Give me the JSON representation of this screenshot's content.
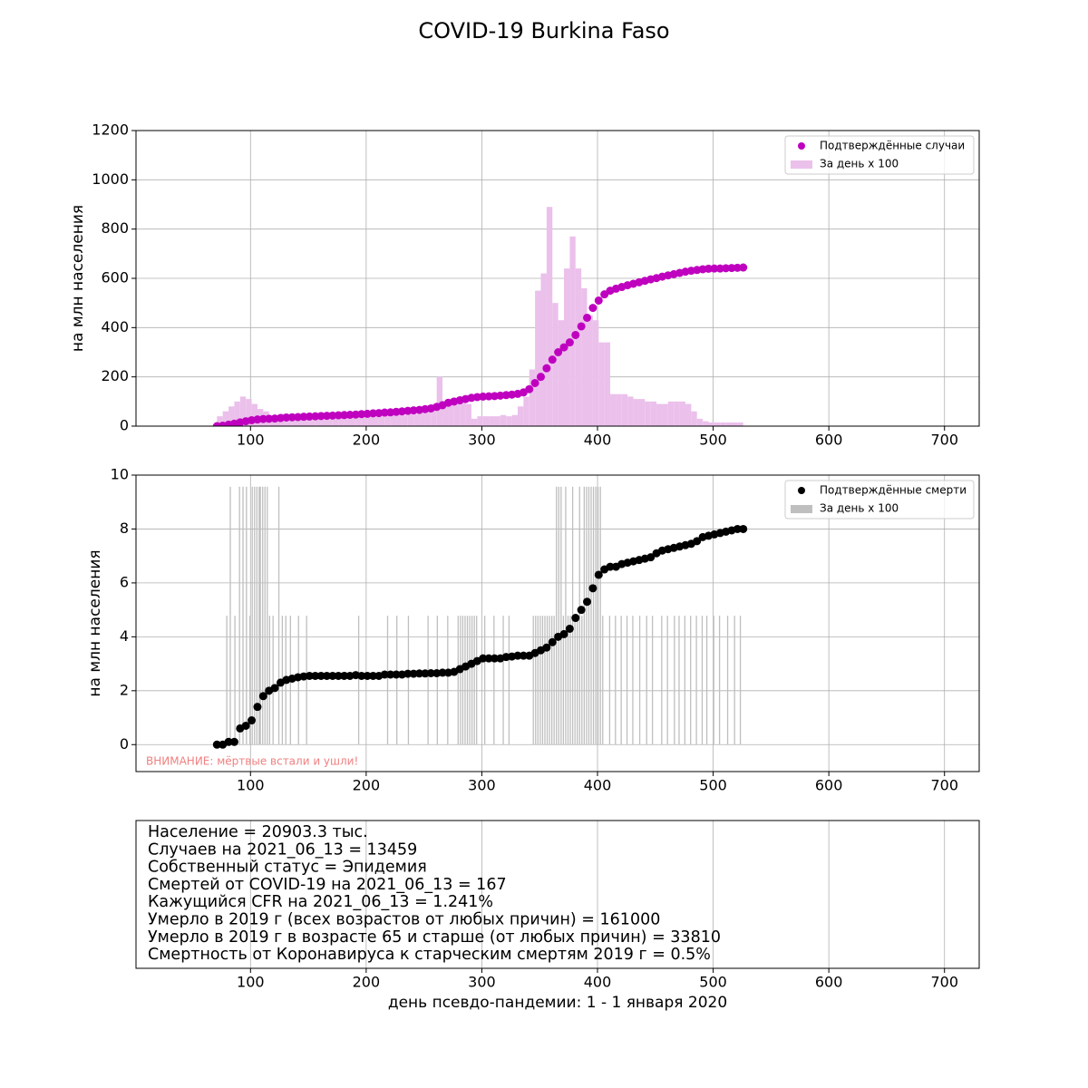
{
  "title": "COVID-19 Burkina Faso",
  "chart_data": [
    {
      "type": "combo",
      "ylabel": "на млн населения",
      "xlim": [
        1,
        730
      ],
      "xticks": [
        100,
        200,
        300,
        400,
        500,
        600,
        700
      ],
      "ylim": [
        0,
        1200
      ],
      "yticks": [
        0,
        200,
        400,
        600,
        800,
        1000,
        1200
      ],
      "grid": true,
      "legend": "upper right",
      "series": [
        {
          "name": "Подтверждённые случаи",
          "kind": "scatter",
          "color": "#bf00bf",
          "x": [
            71,
            76,
            81,
            86,
            91,
            96,
            101,
            106,
            111,
            116,
            121,
            126,
            131,
            136,
            141,
            146,
            151,
            156,
            161,
            166,
            171,
            176,
            181,
            186,
            191,
            196,
            201,
            206,
            211,
            216,
            221,
            226,
            231,
            236,
            241,
            246,
            251,
            256,
            261,
            266,
            271,
            276,
            281,
            286,
            291,
            296,
            301,
            306,
            311,
            316,
            321,
            326,
            331,
            336,
            341,
            346,
            351,
            356,
            361,
            366,
            371,
            376,
            381,
            386,
            391,
            396,
            401,
            406,
            411,
            416,
            421,
            426,
            431,
            436,
            441,
            446,
            451,
            456,
            461,
            466,
            471,
            476,
            481,
            486,
            491,
            496,
            501,
            506,
            511,
            516,
            521,
            526
          ],
          "values": [
            0,
            2,
            6,
            10,
            15,
            20,
            24,
            27,
            29,
            30,
            31,
            33,
            35,
            36,
            37,
            38,
            39,
            40,
            41,
            42,
            43,
            44,
            45,
            46,
            47,
            49,
            50,
            52,
            53,
            55,
            56,
            58,
            60,
            62,
            64,
            66,
            69,
            72,
            78,
            85,
            95,
            100,
            105,
            110,
            115,
            118,
            120,
            121,
            122,
            124,
            126,
            128,
            131,
            137,
            150,
            175,
            200,
            235,
            270,
            300,
            320,
            340,
            370,
            405,
            440,
            480,
            510,
            535,
            550,
            558,
            565,
            572,
            578,
            584,
            590,
            596,
            601,
            607,
            612,
            617,
            622,
            627,
            631,
            634,
            637,
            639,
            640,
            640,
            641,
            642,
            643,
            644
          ]
        },
        {
          "name": "За день x 100",
          "kind": "bar",
          "color": "#ebc0eb",
          "x": [
            71,
            76,
            81,
            86,
            91,
            96,
            101,
            106,
            111,
            116,
            121,
            126,
            131,
            136,
            141,
            146,
            151,
            156,
            161,
            166,
            171,
            176,
            181,
            186,
            191,
            196,
            201,
            206,
            211,
            216,
            221,
            226,
            231,
            236,
            241,
            246,
            251,
            256,
            261,
            266,
            271,
            276,
            281,
            286,
            291,
            296,
            301,
            306,
            311,
            316,
            321,
            326,
            331,
            336,
            341,
            346,
            351,
            356,
            361,
            366,
            371,
            376,
            381,
            386,
            391,
            396,
            401,
            406,
            411,
            416,
            421,
            426,
            431,
            436,
            441,
            446,
            451,
            456,
            461,
            466,
            471,
            476,
            481,
            486,
            491,
            496,
            501,
            506,
            511,
            516,
            521,
            526
          ],
          "values": [
            40,
            60,
            80,
            100,
            120,
            110,
            90,
            70,
            60,
            40,
            40,
            50,
            40,
            30,
            30,
            30,
            25,
            30,
            30,
            30,
            30,
            40,
            35,
            40,
            40,
            45,
            45,
            40,
            40,
            50,
            50,
            50,
            45,
            50,
            50,
            60,
            65,
            90,
            200,
            80,
            90,
            100,
            100,
            90,
            30,
            40,
            40,
            40,
            40,
            45,
            40,
            45,
            80,
            120,
            230,
            550,
            620,
            890,
            500,
            430,
            640,
            770,
            640,
            560,
            450,
            430,
            340,
            340,
            130,
            130,
            130,
            120,
            110,
            110,
            100,
            100,
            90,
            90,
            100,
            100,
            100,
            90,
            60,
            30,
            20,
            15,
            15,
            15,
            15,
            15,
            15,
            0
          ]
        }
      ]
    },
    {
      "type": "combo",
      "ylabel": "на млн населения",
      "xlim": [
        1,
        730
      ],
      "xticks": [
        100,
        200,
        300,
        400,
        500,
        600,
        700
      ],
      "ylim": [
        -1,
        10
      ],
      "yticks": [
        0,
        2,
        4,
        6,
        8,
        10
      ],
      "grid": true,
      "legend": "upper right",
      "annotation": "ВНИМАНИЕ: мёртвые встали и ушли!",
      "annotation_color": "#f08080",
      "series": [
        {
          "name": "Подтверждённые смерти",
          "kind": "scatter",
          "color": "#000000",
          "x": [
            71,
            76,
            81,
            86,
            91,
            96,
            101,
            106,
            111,
            116,
            121,
            126,
            131,
            136,
            141,
            146,
            151,
            156,
            161,
            166,
            171,
            176,
            181,
            186,
            191,
            196,
            201,
            206,
            211,
            216,
            221,
            226,
            231,
            236,
            241,
            246,
            251,
            256,
            261,
            266,
            271,
            276,
            281,
            286,
            291,
            296,
            301,
            306,
            311,
            316,
            321,
            326,
            331,
            336,
            341,
            346,
            351,
            356,
            361,
            366,
            371,
            376,
            381,
            386,
            391,
            396,
            401,
            406,
            411,
            416,
            421,
            426,
            431,
            436,
            441,
            446,
            451,
            456,
            461,
            466,
            471,
            476,
            481,
            486,
            491,
            496,
            501,
            506,
            511,
            516,
            521,
            526
          ],
          "values": [
            0,
            0,
            0.1,
            0.1,
            0.6,
            0.7,
            0.9,
            1.4,
            1.8,
            2.0,
            2.1,
            2.3,
            2.4,
            2.45,
            2.5,
            2.53,
            2.55,
            2.55,
            2.55,
            2.55,
            2.55,
            2.55,
            2.55,
            2.55,
            2.58,
            2.55,
            2.55,
            2.55,
            2.55,
            2.6,
            2.6,
            2.6,
            2.6,
            2.63,
            2.63,
            2.64,
            2.64,
            2.65,
            2.65,
            2.67,
            2.67,
            2.7,
            2.8,
            2.9,
            3.0,
            3.1,
            3.2,
            3.2,
            3.2,
            3.2,
            3.25,
            3.27,
            3.3,
            3.3,
            3.3,
            3.4,
            3.5,
            3.6,
            3.8,
            4.0,
            4.1,
            4.3,
            4.7,
            5.0,
            5.3,
            5.8,
            6.3,
            6.5,
            6.6,
            6.6,
            6.7,
            6.75,
            6.8,
            6.85,
            6.9,
            6.95,
            7.1,
            7.2,
            7.25,
            7.3,
            7.35,
            7.4,
            7.45,
            7.55,
            7.7,
            7.75,
            7.8,
            7.85,
            7.9,
            7.95,
            8.0,
            8.0
          ]
        },
        {
          "name": "За день x 100",
          "kind": "bar",
          "color": "#bfbfbf",
          "x": [
            79,
            82,
            86,
            90,
            93,
            96,
            99,
            101,
            103,
            105,
            107,
            108,
            110,
            112,
            114,
            116,
            119,
            124,
            127,
            130,
            134,
            141,
            148,
            193,
            218,
            226,
            236,
            253,
            261,
            270,
            279,
            281,
            283,
            285,
            287,
            289,
            291,
            293,
            295,
            302,
            310,
            318,
            323,
            344,
            346,
            348,
            350,
            352,
            354,
            356,
            358,
            360,
            362,
            364,
            366,
            368,
            370,
            372,
            374,
            376,
            378,
            380,
            382,
            384,
            386,
            388,
            390,
            392,
            394,
            396,
            398,
            400,
            402,
            404,
            410,
            415,
            420,
            425,
            430,
            436,
            442,
            447,
            455,
            460,
            466,
            470,
            475,
            480,
            485,
            490,
            494,
            500,
            505,
            512,
            518,
            523
          ],
          "values": [
            4.78,
            9.57,
            4.78,
            9.57,
            9.57,
            9.57,
            4.78,
            9.57,
            9.57,
            9.57,
            9.57,
            9.57,
            9.57,
            9.57,
            9.57,
            4.78,
            4.78,
            9.57,
            4.78,
            4.78,
            4.78,
            4.78,
            4.78,
            4.78,
            4.78,
            4.78,
            4.78,
            4.78,
            4.78,
            4.78,
            4.78,
            4.78,
            4.78,
            4.78,
            4.78,
            4.78,
            4.78,
            4.78,
            4.78,
            4.78,
            4.78,
            4.78,
            4.78,
            4.78,
            4.78,
            4.78,
            4.78,
            4.78,
            4.78,
            4.78,
            4.78,
            4.78,
            4.78,
            9.57,
            9.57,
            9.57,
            4.78,
            9.57,
            4.78,
            4.78,
            9.57,
            4.78,
            4.78,
            9.57,
            4.78,
            9.57,
            9.57,
            9.57,
            9.57,
            9.57,
            9.57,
            9.57,
            9.57,
            4.78,
            4.78,
            4.78,
            4.78,
            4.78,
            4.78,
            4.78,
            4.78,
            4.78,
            4.78,
            4.78,
            4.78,
            4.78,
            4.78,
            4.78,
            4.78,
            4.78,
            4.78,
            4.78,
            4.78,
            4.78,
            4.78,
            4.78
          ]
        }
      ]
    },
    {
      "type": "text",
      "xlim": [
        1,
        730
      ],
      "xticks": [
        100,
        200,
        300,
        400,
        500,
        600,
        700
      ],
      "grid": true,
      "xlabel": "день псевдо-пандемии: 1 - 1 января 2020",
      "lines": [
        "Население = 20903.3 тыс.",
        "Случаев на 2021_06_13 = 13459",
        "Собственный статус = Эпидемия",
        "Смертей от COVID-19 на 2021_06_13 = 167",
        "Кажущийся CFR на 2021_06_13 = 1.241%",
        "Умерло в 2019 г (всех возрастов от любых причин) = 161000",
        "Умерло в 2019 г в возрасте 65 и старше (от любых причин) = 33810",
        "Смертность от Коронавируса к старческим смертям 2019 г = 0.5%"
      ]
    }
  ]
}
